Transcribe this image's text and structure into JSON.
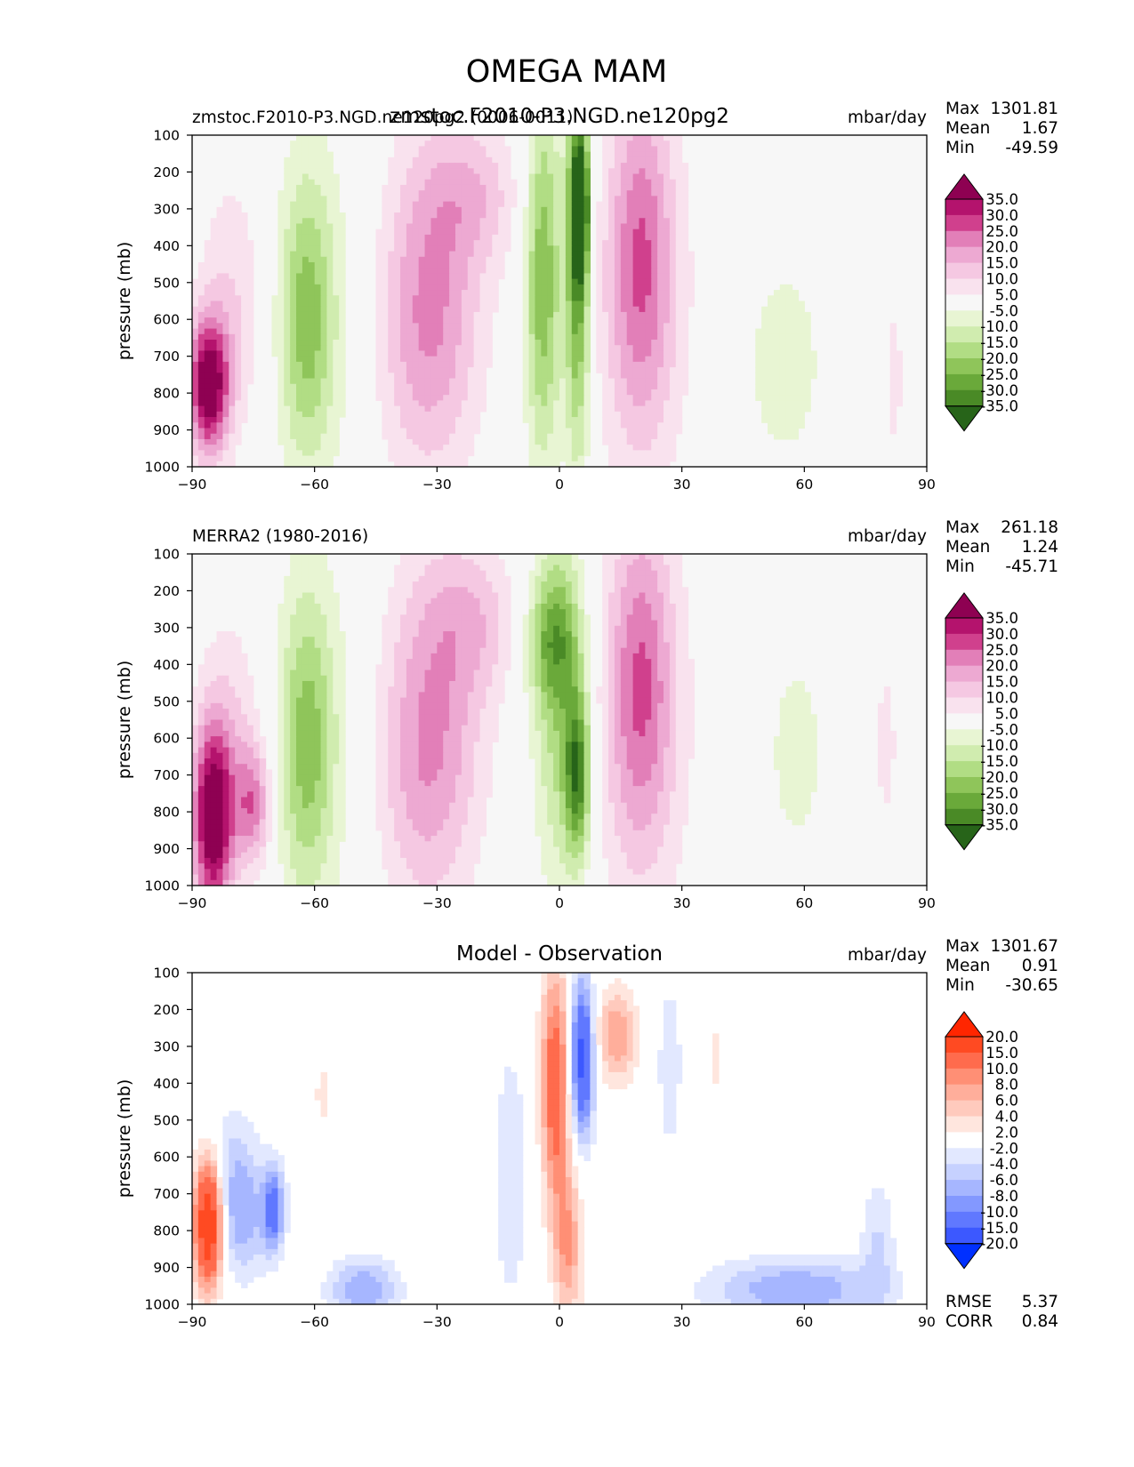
{
  "figure": {
    "title": "OMEGA MAM"
  },
  "chart_data": [
    {
      "type": "heatmap",
      "panel": "model",
      "title": "zmstoc.F2010-P3.NGD.ne120pg2",
      "left_label": "zmstoc.F2010-P3.NGD.ne120pg2 (0006-0011)",
      "units": "mbar/day",
      "xlabel": "",
      "ylabel": "pressure (mb)",
      "xlim": [
        -90,
        90
      ],
      "ylim": [
        1000,
        100
      ],
      "xticks": [
        "−90",
        "−60",
        "−30",
        "0",
        "30",
        "60",
        "90"
      ],
      "yticks": [
        "100",
        "200",
        "300",
        "400",
        "500",
        "600",
        "700",
        "800",
        "900",
        "1000"
      ],
      "stats": {
        "max_label": "Max",
        "max": "1301.81",
        "mean_label": "Mean",
        "mean": "1.67",
        "min_label": "Min",
        "min": "-49.59"
      },
      "colorbar": {
        "labels": [
          "35.0",
          "30.0",
          "25.0",
          "20.0",
          "15.0",
          "10.0",
          "5.0",
          "-5.0",
          "-10.0",
          "-15.0",
          "-20.0",
          "-25.0",
          "-30.0",
          "-35.0"
        ],
        "colors": [
          "#8e0152",
          "#b4136d",
          "#d0408d",
          "#e27fb8",
          "#eda9d2",
          "#f5c8e2",
          "#f9e2ee",
          "#f7f7f7",
          "#e8f5d3",
          "#d0ecaf",
          "#b1dd84",
          "#8fc55a",
          "#6aa93a",
          "#4a8a26",
          "#276419"
        ]
      },
      "features": [
        {
          "lat": -86,
          "p": 780,
          "v": 40,
          "wx": 3.5,
          "wp": 130
        },
        {
          "lat": -80,
          "p": 560,
          "v": 10,
          "wx": 6,
          "wp": 260
        },
        {
          "lat": -62,
          "p": 600,
          "v": -16,
          "wx": 4.5,
          "wp": 260
        },
        {
          "lat": -60,
          "p": 580,
          "v": -8,
          "wx": 8,
          "wp": 380
        },
        {
          "lat": -30,
          "p": 500,
          "v": 14,
          "wx": 9,
          "wp": 340
        },
        {
          "lat": -34,
          "p": 650,
          "v": 9,
          "wx": 8,
          "wp": 280
        },
        {
          "lat": -20,
          "p": 260,
          "v": 10,
          "wx": 8,
          "wp": 130
        },
        {
          "lat": -4,
          "p": 480,
          "v": -25,
          "wx": 3.2,
          "wp": 360
        },
        {
          "lat": 4.5,
          "p": 460,
          "v": -30,
          "wx": 2.2,
          "wp": 380
        },
        {
          "lat": 5,
          "p": 290,
          "v": -36,
          "wx": 1.5,
          "wp": 130
        },
        {
          "lat": 20,
          "p": 430,
          "v": 19,
          "wx": 5.5,
          "wp": 320
        },
        {
          "lat": 20,
          "p": 560,
          "v": 8,
          "wx": 10,
          "wp": 420
        },
        {
          "lat": 55,
          "p": 720,
          "v": -7,
          "wx": 9,
          "wp": 260
        },
        {
          "lat": 82,
          "p": 760,
          "v": 8,
          "wx": 1.5,
          "wp": 160
        }
      ]
    },
    {
      "type": "heatmap",
      "panel": "observation",
      "title": "",
      "left_label": "MERRA2 (1980-2016)",
      "units": "mbar/day",
      "xlabel": "",
      "ylabel": "pressure (mb)",
      "xlim": [
        -90,
        90
      ],
      "ylim": [
        1000,
        100
      ],
      "xticks": [
        "−90",
        "−60",
        "−30",
        "0",
        "30",
        "60",
        "90"
      ],
      "yticks": [
        "100",
        "200",
        "300",
        "400",
        "500",
        "600",
        "700",
        "800",
        "900",
        "1000"
      ],
      "stats": {
        "max_label": "Max",
        "max": "261.18",
        "mean_label": "Mean",
        "mean": "1.24",
        "min_label": "Min",
        "min": "-45.71"
      },
      "colorbar": {
        "labels": [
          "35.0",
          "30.0",
          "25.0",
          "20.0",
          "15.0",
          "10.0",
          "5.0",
          "-5.0",
          "-10.0",
          "-15.0",
          "-20.0",
          "-25.0",
          "-30.0",
          "-35.0"
        ],
        "colors": [
          "#8e0152",
          "#b4136d",
          "#d0408d",
          "#e27fb8",
          "#eda9d2",
          "#f5c8e2",
          "#f9e2ee",
          "#f7f7f7",
          "#e8f5d3",
          "#d0ecaf",
          "#b1dd84",
          "#8fc55a",
          "#6aa93a",
          "#4a8a26",
          "#276419"
        ]
      },
      "features": [
        {
          "lat": -85,
          "p": 820,
          "v": 40,
          "wx": 3.5,
          "wp": 180
        },
        {
          "lat": -80,
          "p": 620,
          "v": 10,
          "wx": 6,
          "wp": 260
        },
        {
          "lat": -75,
          "p": 780,
          "v": 20,
          "wx": 3,
          "wp": 110
        },
        {
          "lat": -62,
          "p": 620,
          "v": -16,
          "wx": 4.5,
          "wp": 280
        },
        {
          "lat": -60,
          "p": 590,
          "v": -8,
          "wx": 8,
          "wp": 380
        },
        {
          "lat": -30,
          "p": 520,
          "v": 14,
          "wx": 9,
          "wp": 340
        },
        {
          "lat": -34,
          "p": 700,
          "v": 9,
          "wx": 8,
          "wp": 280
        },
        {
          "lat": -20,
          "p": 280,
          "v": 10,
          "wx": 8,
          "wp": 140
        },
        {
          "lat": 0,
          "p": 480,
          "v": -19,
          "wx": 4.5,
          "wp": 360
        },
        {
          "lat": 4.5,
          "p": 700,
          "v": -30,
          "wx": 2.2,
          "wp": 160
        },
        {
          "lat": -2,
          "p": 330,
          "v": -16,
          "wx": 5,
          "wp": 120
        },
        {
          "lat": 20,
          "p": 450,
          "v": 19,
          "wx": 5.5,
          "wp": 320
        },
        {
          "lat": 20,
          "p": 560,
          "v": 8,
          "wx": 10,
          "wp": 420
        },
        {
          "lat": 58,
          "p": 640,
          "v": -7,
          "wx": 6,
          "wp": 240
        },
        {
          "lat": 80,
          "p": 620,
          "v": 6,
          "wx": 3,
          "wp": 260
        }
      ]
    },
    {
      "type": "heatmap",
      "panel": "difference",
      "title": "Model - Observation",
      "left_label": "",
      "units": "mbar/day",
      "xlabel": "",
      "ylabel": "pressure (mb)",
      "xlim": [
        -90,
        90
      ],
      "ylim": [
        1000,
        100
      ],
      "xticks": [
        "−90",
        "−60",
        "−30",
        "0",
        "30",
        "60",
        "90"
      ],
      "yticks": [
        "100",
        "200",
        "300",
        "400",
        "500",
        "600",
        "700",
        "800",
        "900",
        "1000"
      ],
      "stats": {
        "max_label": "Max",
        "max": "1301.67",
        "mean_label": "Mean",
        "mean": "0.91",
        "min_label": "Min",
        "min": "-30.65"
      },
      "extra_stats": {
        "rmse_label": "RMSE",
        "rmse": "5.37",
        "corr_label": "CORR",
        "corr": "0.84"
      },
      "colorbar": {
        "labels": [
          "20.0",
          "15.0",
          "10.0",
          "8.0",
          "6.0",
          "4.0",
          "2.0",
          "-2.0",
          "-4.0",
          "-6.0",
          "-8.0",
          "-10.0",
          "-15.0",
          "-20.0"
        ],
        "colors": [
          "#ff2600",
          "#ff4a22",
          "#ff6b4d",
          "#ff8f75",
          "#ffae9b",
          "#ffcabd",
          "#ffe6de",
          "#ffffff",
          "#e2e8ff",
          "#c6d1ff",
          "#a6b6ff",
          "#8398ff",
          "#6078ff",
          "#3c58ff",
          "#0030ff"
        ]
      },
      "features": [
        {
          "lat": -86,
          "p": 780,
          "v": 22,
          "wx": 2.5,
          "wp": 120
        },
        {
          "lat": -78,
          "p": 760,
          "v": -7,
          "wx": 5,
          "wp": 120
        },
        {
          "lat": -70,
          "p": 740,
          "v": -11,
          "wx": 1.8,
          "wp": 80
        },
        {
          "lat": -80,
          "p": 600,
          "v": -3,
          "wx": 4,
          "wp": 120
        },
        {
          "lat": -58,
          "p": 430,
          "v": 2.5,
          "wx": 2,
          "wp": 90
        },
        {
          "lat": -48,
          "p": 960,
          "v": -8,
          "wx": 6,
          "wp": 60
        },
        {
          "lat": -12,
          "p": 650,
          "v": -4,
          "wx": 3,
          "wp": 250
        },
        {
          "lat": -1,
          "p": 400,
          "v": 13,
          "wx": 2.5,
          "wp": 220
        },
        {
          "lat": 2,
          "p": 840,
          "v": 8,
          "wx": 2.5,
          "wp": 150
        },
        {
          "lat": 5.5,
          "p": 330,
          "v": -17,
          "wx": 2,
          "wp": 150
        },
        {
          "lat": 14,
          "p": 270,
          "v": 8,
          "wx": 3.5,
          "wp": 90
        },
        {
          "lat": 27,
          "p": 350,
          "v": -4,
          "wx": 2,
          "wp": 160
        },
        {
          "lat": 38,
          "p": 330,
          "v": 2.5,
          "wx": 1.5,
          "wp": 110
        },
        {
          "lat": 58,
          "p": 960,
          "v": -8,
          "wx": 15,
          "wp": 60
        },
        {
          "lat": 78,
          "p": 820,
          "v": -4,
          "wx": 3,
          "wp": 120
        }
      ]
    }
  ]
}
